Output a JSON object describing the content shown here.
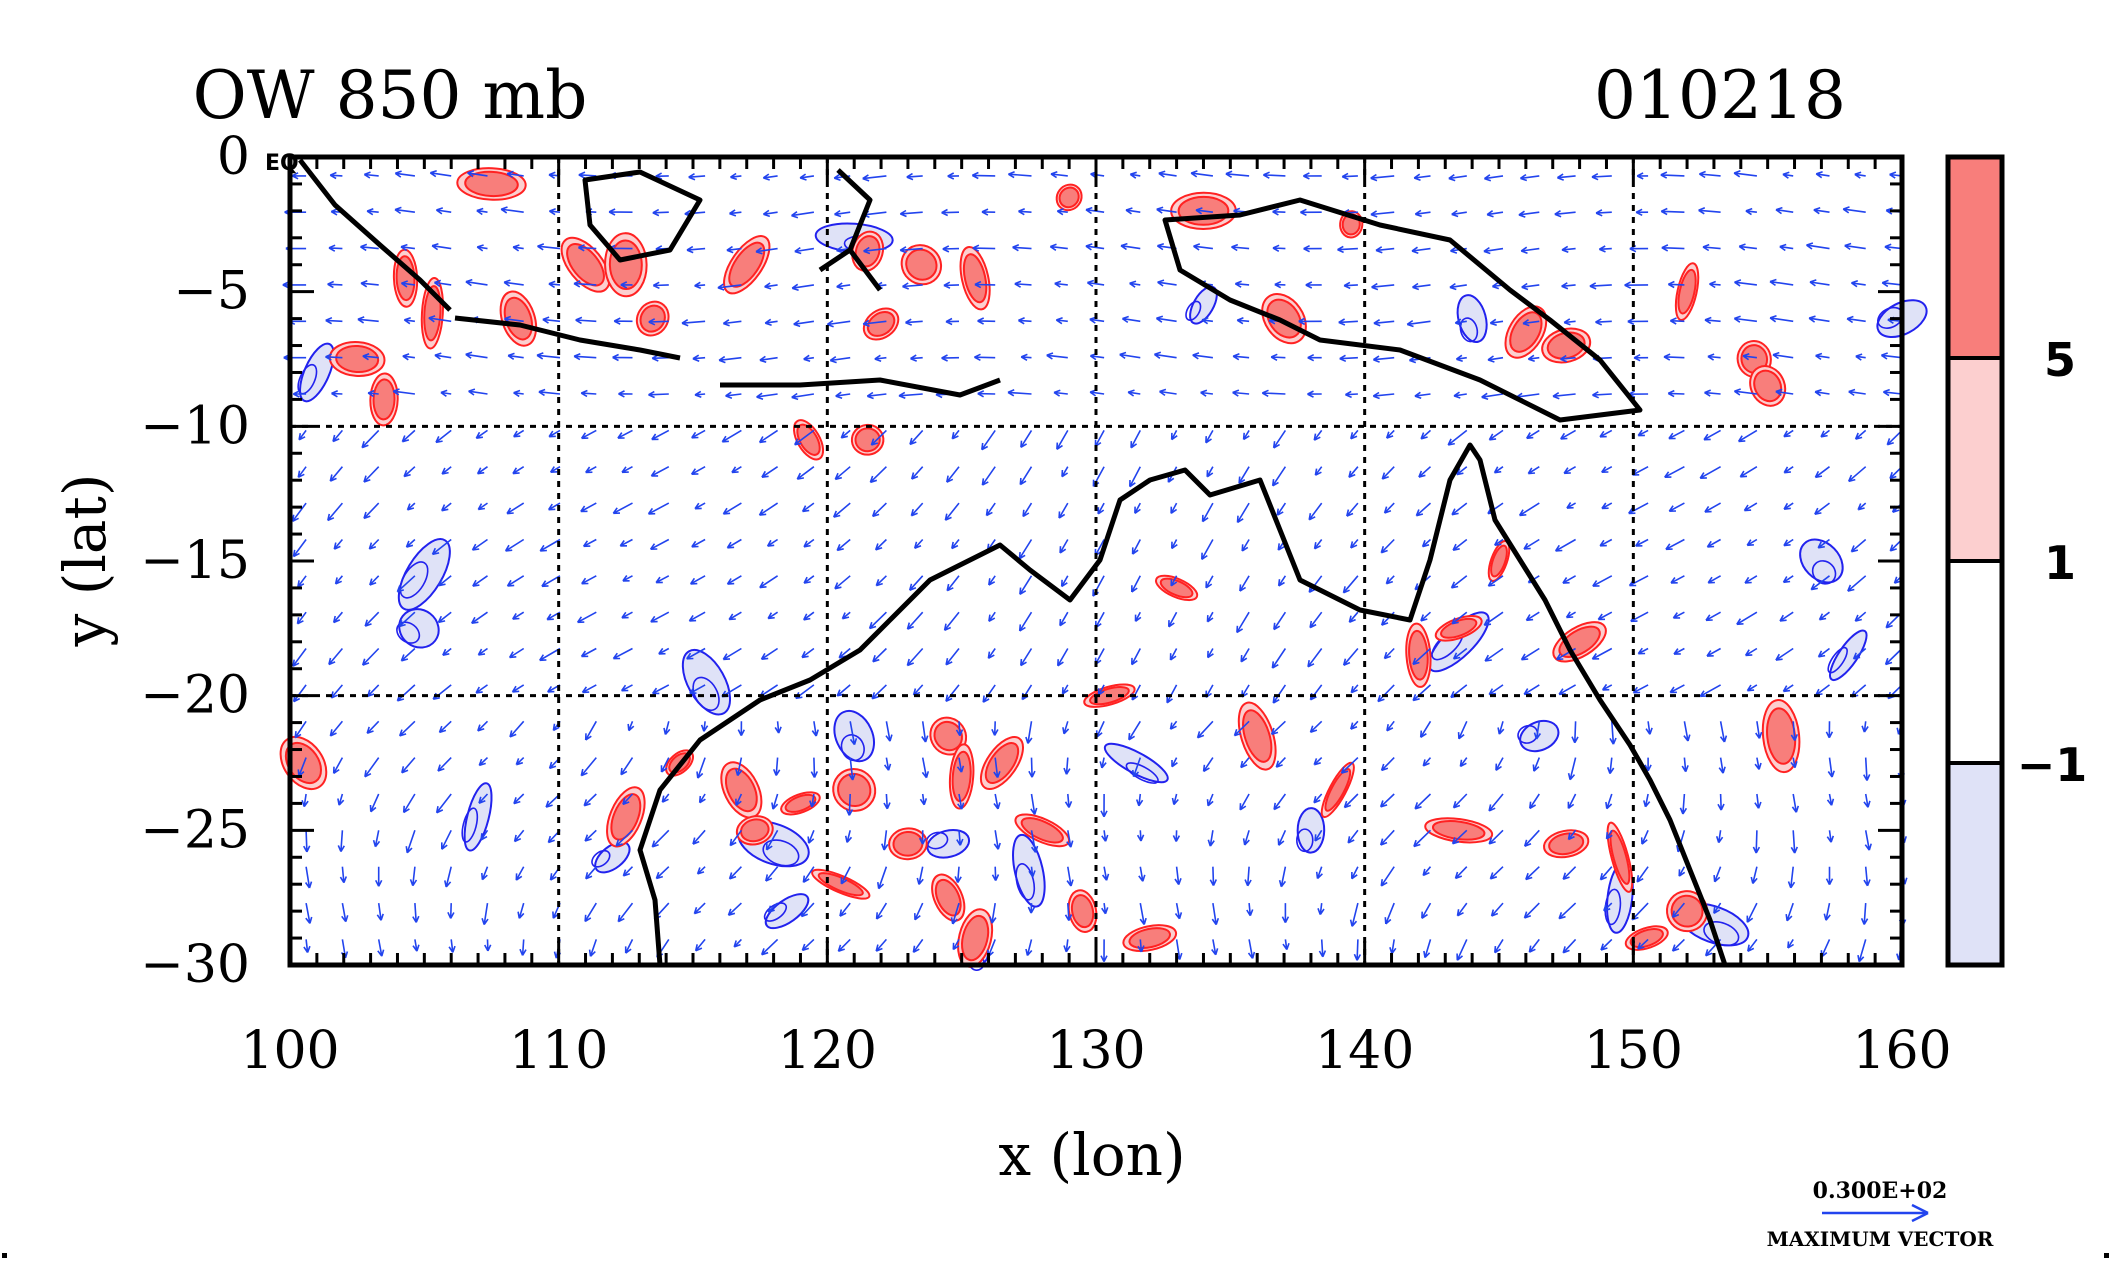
{
  "chart_data": {
    "type": "contour-vector-map",
    "title": "OW 850 mb",
    "date_label": "010218",
    "xlabel": "x (lon)",
    "ylabel": "y (lat)",
    "xlim": [
      100,
      160
    ],
    "ylim": [
      -30,
      0
    ],
    "x_ticks": [
      100,
      110,
      120,
      130,
      140,
      150,
      160
    ],
    "y_ticks": [
      0,
      -5,
      -10,
      -15,
      -20,
      -25,
      -30
    ],
    "x_tick_labels": [
      "100",
      "110",
      "120",
      "130",
      "140",
      "150",
      "160"
    ],
    "y_tick_labels": [
      "0",
      "−5",
      "−10",
      "−15",
      "−20",
      "−25",
      "−30"
    ],
    "grid_lines_x": [
      110,
      120,
      130,
      140,
      150
    ],
    "grid_lines_y": [
      -10,
      -20
    ],
    "grid": true,
    "corner_mark": "EQ",
    "colorbar": {
      "levels": [
        "5",
        "1",
        "−1"
      ],
      "colors": [
        "#f87e7b",
        "#fccfcf",
        "#ffffff",
        "#dfe2f7"
      ]
    },
    "positive_contour_color": "#ff2222",
    "negative_contour_color": "#2222ee",
    "coastline_color": "#000000",
    "vector_color": "#2244ee",
    "vector_reference": {
      "value_label": "0.300E+02",
      "caption": "MAXIMUM VECTOR"
    },
    "positive_features": [
      {
        "lon": 102.5,
        "lat": -7.5
      },
      {
        "lon": 103.5,
        "lat": -9.0
      },
      {
        "lon": 104.3,
        "lat": -4.5
      },
      {
        "lon": 105.3,
        "lat": -5.8
      },
      {
        "lon": 107.5,
        "lat": -1.0
      },
      {
        "lon": 108.5,
        "lat": -6.0
      },
      {
        "lon": 111.0,
        "lat": -4.0
      },
      {
        "lon": 112.5,
        "lat": -4.0
      },
      {
        "lon": 113.5,
        "lat": -6.0
      },
      {
        "lon": 117.0,
        "lat": -4.0
      },
      {
        "lon": 121.5,
        "lat": -3.5
      },
      {
        "lon": 122.0,
        "lat": -6.2
      },
      {
        "lon": 123.5,
        "lat": -4.0
      },
      {
        "lon": 125.5,
        "lat": -4.5
      },
      {
        "lon": 129.0,
        "lat": -1.5
      },
      {
        "lon": 134.0,
        "lat": -2.0
      },
      {
        "lon": 137.0,
        "lat": -6.0
      },
      {
        "lon": 139.5,
        "lat": -2.5
      },
      {
        "lon": 146.0,
        "lat": -6.5
      },
      {
        "lon": 147.5,
        "lat": -7.0
      },
      {
        "lon": 152.0,
        "lat": -5.0
      },
      {
        "lon": 154.5,
        "lat": -7.5
      },
      {
        "lon": 155.0,
        "lat": -8.5
      },
      {
        "lon": 119.3,
        "lat": -10.5
      },
      {
        "lon": 121.5,
        "lat": -10.5
      },
      {
        "lon": 148.0,
        "lat": -18.0
      },
      {
        "lon": 142.0,
        "lat": -18.5
      },
      {
        "lon": 143.5,
        "lat": -17.5
      },
      {
        "lon": 145.0,
        "lat": -15.0
      },
      {
        "lon": 133.0,
        "lat": -16.0
      },
      {
        "lon": 114.5,
        "lat": -22.5
      },
      {
        "lon": 116.8,
        "lat": -23.5
      },
      {
        "lon": 117.3,
        "lat": -25.0
      },
      {
        "lon": 119.0,
        "lat": -24.0
      },
      {
        "lon": 121.0,
        "lat": -23.5
      },
      {
        "lon": 123.0,
        "lat": -25.5
      },
      {
        "lon": 124.5,
        "lat": -21.5
      },
      {
        "lon": 125.0,
        "lat": -23.0
      },
      {
        "lon": 126.5,
        "lat": -22.5
      },
      {
        "lon": 128.0,
        "lat": -25.0
      },
      {
        "lon": 120.5,
        "lat": -27.0
      },
      {
        "lon": 124.5,
        "lat": -27.5
      },
      {
        "lon": 125.5,
        "lat": -29.0
      },
      {
        "lon": 129.5,
        "lat": -28.0
      },
      {
        "lon": 132.0,
        "lat": -29.0
      },
      {
        "lon": 136.0,
        "lat": -21.5
      },
      {
        "lon": 143.5,
        "lat": -25.0
      },
      {
        "lon": 147.5,
        "lat": -25.5
      },
      {
        "lon": 149.5,
        "lat": -26.0
      },
      {
        "lon": 150.5,
        "lat": -29.0
      },
      {
        "lon": 152.0,
        "lat": -28.0
      },
      {
        "lon": 155.5,
        "lat": -21.5
      },
      {
        "lon": 100.5,
        "lat": -22.5
      },
      {
        "lon": 112.5,
        "lat": -24.5
      },
      {
        "lon": 130.5,
        "lat": -20.0
      },
      {
        "lon": 139.0,
        "lat": -23.5
      }
    ],
    "negative_features": [
      {
        "lon": 101.0,
        "lat": -8.0
      },
      {
        "lon": 105.0,
        "lat": -15.5
      },
      {
        "lon": 104.8,
        "lat": -17.5
      },
      {
        "lon": 115.5,
        "lat": -19.5
      },
      {
        "lon": 107.0,
        "lat": -24.5
      },
      {
        "lon": 112.0,
        "lat": -26.0
      },
      {
        "lon": 118.0,
        "lat": -25.5
      },
      {
        "lon": 121.0,
        "lat": -21.5
      },
      {
        "lon": 124.5,
        "lat": -25.5
      },
      {
        "lon": 127.5,
        "lat": -26.5
      },
      {
        "lon": 131.5,
        "lat": -22.5
      },
      {
        "lon": 138.0,
        "lat": -25.0
      },
      {
        "lon": 143.5,
        "lat": -18.0
      },
      {
        "lon": 146.5,
        "lat": -21.5
      },
      {
        "lon": 149.5,
        "lat": -27.5
      },
      {
        "lon": 153.0,
        "lat": -28.5
      },
      {
        "lon": 158.0,
        "lat": -18.5
      },
      {
        "lon": 157.0,
        "lat": -15.0
      },
      {
        "lon": 144.0,
        "lat": -6.0
      },
      {
        "lon": 121.0,
        "lat": -3.0
      },
      {
        "lon": 134.0,
        "lat": -5.5
      },
      {
        "lon": 125.5,
        "lat": -29.5
      },
      {
        "lon": 118.5,
        "lat": -28.0
      },
      {
        "lon": 160.0,
        "lat": -6.0
      }
    ]
  }
}
